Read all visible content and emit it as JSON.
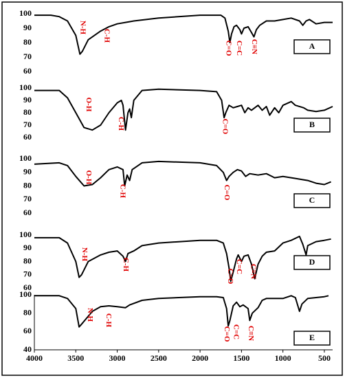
{
  "chart_data": [
    {
      "type": "line",
      "label": "A",
      "color": "#000000",
      "xlim": [
        4000,
        400
      ],
      "ylim": [
        60,
        100
      ],
      "yticks": [
        60,
        70,
        80,
        90,
        100
      ],
      "annotations": [
        "N-H",
        "C-H",
        "C=O",
        "C=C",
        "C≡N"
      ],
      "x": [
        4000,
        3800,
        3700,
        3600,
        3500,
        3450,
        3420,
        3350,
        3200,
        3100,
        3000,
        2900,
        2800,
        2500,
        2000,
        1750,
        1700,
        1660,
        1640,
        1620,
        1590,
        1560,
        1520,
        1500,
        1470,
        1420,
        1380,
        1350,
        1320,
        1280,
        1200,
        1100,
        1000,
        900,
        800,
        760,
        720,
        680,
        600,
        500,
        400
      ],
      "values": [
        99,
        99,
        98,
        95,
        85,
        72,
        74,
        82,
        88,
        91,
        93,
        94,
        95,
        97,
        99,
        99,
        97,
        88,
        80,
        86,
        91,
        92,
        89,
        86,
        90,
        91,
        87,
        84,
        89,
        92,
        95,
        95,
        96,
        97,
        95,
        92,
        95,
        96,
        93,
        94,
        94
      ]
    },
    {
      "type": "line",
      "label": "B",
      "color": "#000000",
      "xlim": [
        4000,
        400
      ],
      "ylim": [
        60,
        100
      ],
      "yticks": [
        60,
        70,
        80,
        90,
        100
      ],
      "annotations": [
        "O-H",
        "C-H",
        "C=O"
      ],
      "x": [
        4000,
        3700,
        3600,
        3500,
        3400,
        3300,
        3200,
        3100,
        3000,
        2950,
        2930,
        2900,
        2870,
        2850,
        2830,
        2800,
        2700,
        2500,
        2000,
        1800,
        1740,
        1710,
        1690,
        1650,
        1600,
        1550,
        1500,
        1460,
        1420,
        1380,
        1300,
        1250,
        1200,
        1160,
        1100,
        1050,
        1000,
        900,
        850,
        750,
        700,
        600,
        500,
        400
      ],
      "values": [
        98,
        98,
        92,
        80,
        68,
        66,
        70,
        80,
        88,
        90,
        86,
        66,
        80,
        83,
        76,
        90,
        98,
        99,
        98,
        97,
        90,
        76,
        80,
        86,
        84,
        85,
        86,
        80,
        84,
        82,
        86,
        82,
        85,
        78,
        84,
        80,
        86,
        89,
        86,
        84,
        82,
        81,
        82,
        85
      ]
    },
    {
      "type": "line",
      "label": "C",
      "color": "#000000",
      "xlim": [
        4000,
        400
      ],
      "ylim": [
        60,
        100
      ],
      "yticks": [
        60,
        70,
        80,
        90,
        100
      ],
      "annotations": [
        "O-H",
        "C-H",
        "C=O"
      ],
      "x": [
        4000,
        3700,
        3600,
        3500,
        3400,
        3300,
        3200,
        3100,
        3000,
        2930,
        2910,
        2880,
        2850,
        2820,
        2700,
        2500,
        2000,
        1800,
        1720,
        1680,
        1650,
        1600,
        1550,
        1500,
        1450,
        1400,
        1300,
        1200,
        1100,
        1000,
        900,
        800,
        700,
        600,
        500,
        420
      ],
      "values": [
        96,
        97,
        95,
        87,
        80,
        81,
        86,
        92,
        94,
        92,
        80,
        88,
        84,
        92,
        97,
        98,
        97,
        95,
        90,
        84,
        87,
        90,
        92,
        91,
        87,
        89,
        88,
        89,
        86,
        87,
        86,
        85,
        84,
        82,
        81,
        83
      ]
    },
    {
      "type": "line",
      "label": "D",
      "color": "#000000",
      "xlim": [
        4000,
        400
      ],
      "ylim": [
        60,
        100
      ],
      "yticks": [
        60,
        70,
        80,
        90,
        100
      ],
      "annotations": [
        "N-H",
        "C-H",
        "C=O",
        "C=C",
        "C≡N"
      ],
      "x": [
        4000,
        3700,
        3600,
        3500,
        3460,
        3430,
        3350,
        3200,
        3100,
        3000,
        2930,
        2900,
        2870,
        2800,
        2700,
        2500,
        2000,
        1800,
        1720,
        1680,
        1650,
        1630,
        1600,
        1560,
        1540,
        1500,
        1470,
        1420,
        1380,
        1340,
        1300,
        1250,
        1200,
        1100,
        1000,
        900,
        800,
        760,
        720,
        700,
        600,
        500,
        420
      ],
      "values": [
        98,
        98,
        94,
        80,
        68,
        70,
        80,
        85,
        87,
        88,
        84,
        80,
        86,
        88,
        92,
        94,
        96,
        96,
        94,
        86,
        75,
        65,
        72,
        82,
        85,
        80,
        84,
        85,
        78,
        67,
        78,
        84,
        87,
        88,
        94,
        96,
        99,
        93,
        85,
        92,
        95,
        96,
        97
      ]
    },
    {
      "type": "line",
      "label": "E",
      "color": "#000000",
      "xlim": [
        4000,
        400
      ],
      "ylim": [
        40,
        100
      ],
      "yticks": [
        40,
        60,
        80,
        100
      ],
      "xticks": [
        4000,
        3500,
        3000,
        2500,
        2000,
        1500,
        1000,
        500
      ],
      "annotations": [
        "N-H",
        "C-H",
        "C=O",
        "C=C",
        "C≡N"
      ],
      "x": [
        4000,
        3700,
        3600,
        3500,
        3460,
        3430,
        3300,
        3200,
        3100,
        3000,
        2900,
        2850,
        2700,
        2500,
        2000,
        1800,
        1720,
        1680,
        1660,
        1640,
        1600,
        1560,
        1520,
        1480,
        1420,
        1400,
        1370,
        1300,
        1250,
        1200,
        1000,
        900,
        850,
        800,
        770,
        700,
        600,
        500,
        450
      ],
      "values": [
        99,
        99,
        96,
        85,
        65,
        68,
        82,
        87,
        88,
        87,
        86,
        89,
        94,
        96,
        98,
        98,
        97,
        85,
        66,
        72,
        88,
        92,
        87,
        89,
        85,
        72,
        80,
        86,
        94,
        96,
        96,
        99,
        97,
        82,
        90,
        96,
        97,
        98,
        99
      ]
    }
  ]
}
